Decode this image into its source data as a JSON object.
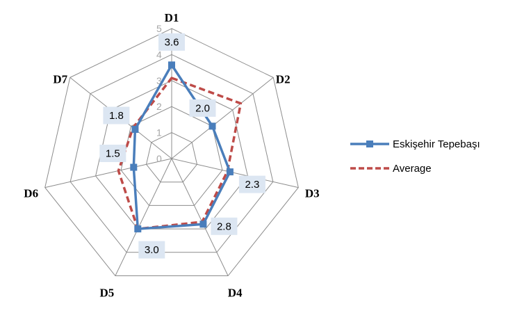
{
  "chart_data": {
    "type": "radar",
    "title": "",
    "axes": [
      "D1",
      "D2",
      "D3",
      "D4",
      "D5",
      "D6",
      "D7"
    ],
    "ticks": [
      "0",
      "1",
      "2",
      "3",
      "4",
      "5"
    ],
    "rlim": [
      0,
      5
    ],
    "grid": true,
    "legend_position": "right",
    "series": [
      {
        "name": "Eskişehir Tepebaşı",
        "values": [
          3.6,
          2.0,
          2.3,
          2.8,
          3.0,
          1.5,
          1.8
        ],
        "data_labels": [
          "3.6",
          "2.0",
          "2.3",
          "2.8",
          "3.0",
          "1.5",
          "1.8"
        ],
        "color": "#4a7ebb",
        "style": "solid",
        "marker": "square"
      },
      {
        "name": "Average",
        "values": [
          3.1,
          3.4,
          2.2,
          2.7,
          3.0,
          2.1,
          1.9
        ],
        "color": "#be4b48",
        "style": "dashed",
        "marker": "none"
      }
    ]
  }
}
